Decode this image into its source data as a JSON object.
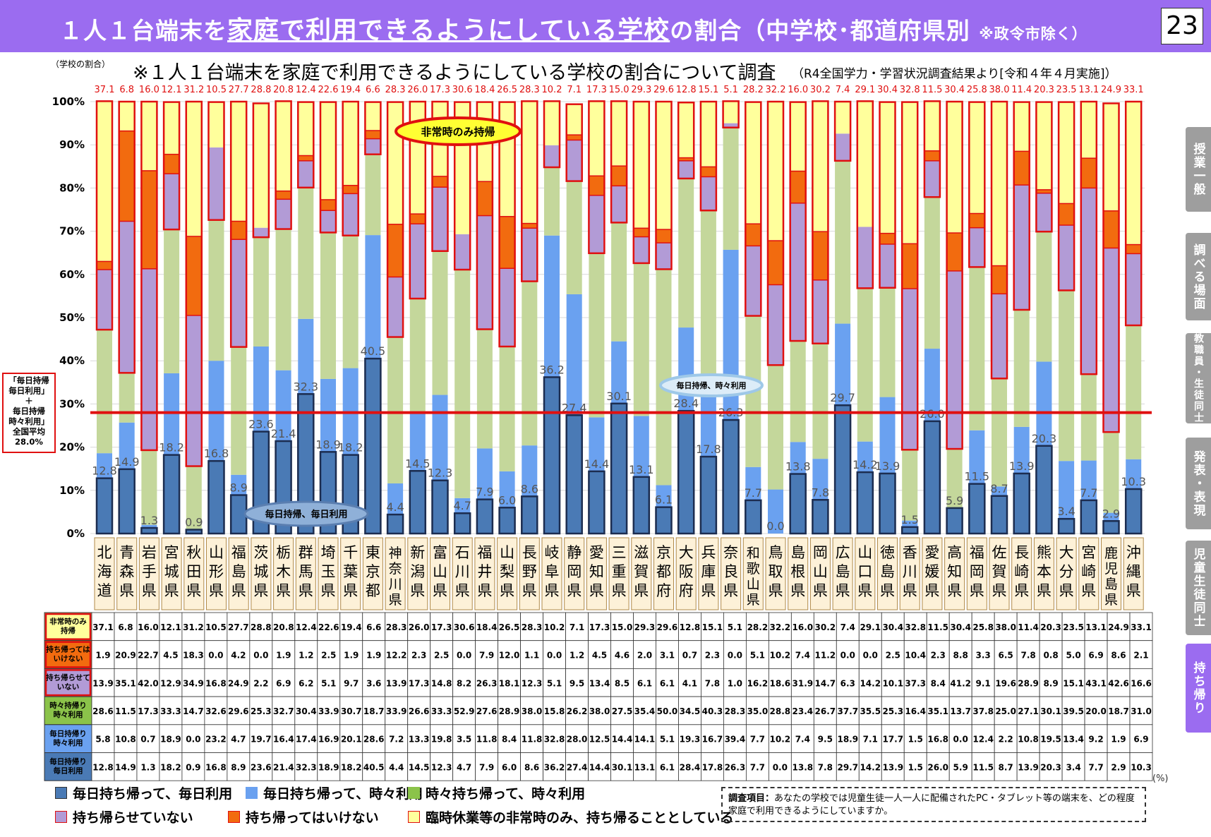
{
  "header": {
    "title_pre": "１人１台端末を",
    "title_underlined": "家庭で利用できるようにしている学校",
    "title_post": "の割合（中学校･都道府県別",
    "title_note": "※政令市除く）",
    "page_number": "23"
  },
  "side_tabs": [
    "授業一般",
    "調べる場面",
    "教職員・生徒同士",
    "発表・表現",
    "児童生徒同士",
    "持ち帰り"
  ],
  "active_tab": "持ち帰り",
  "colors": {
    "daily_daily": "#4a7ab5",
    "daily_sometimes": "#6aa1f0",
    "sometimes_sometimes": "#c4d79b",
    "not_allowed_take": "#b29bd6",
    "forbidden": "#f26b0f",
    "emergency_only": "#ffff9c",
    "avg_line": "#e01010",
    "highlight_border": "#e01010",
    "label_red": "#e01010"
  },
  "annotations": {
    "emergency": "非常時のみ持帰",
    "daily_sometimes": "毎日持帰、時々利用",
    "daily_daily": "毎日持帰、毎日利用"
  },
  "average_box": {
    "line1": "「毎日持帰",
    "line2": "毎日利用」",
    "line3": "＋",
    "line4": "毎日持帰",
    "line5": "時々利用」",
    "line6": "全国平均",
    "line7": "28.0%"
  },
  "chart_data": {
    "type": "bar",
    "stacked": true,
    "title": "※１人１台端末を家庭で利用できるようにしている学校の割合について調査",
    "subtitle": "（R4全国学力・学習状況調査結果より[令和４年４月実施]）",
    "ylabel": "（学校の割合）",
    "ylim": [
      0,
      100
    ],
    "yticks": [
      "0%",
      "10%",
      "20%",
      "30%",
      "40%",
      "50%",
      "60%",
      "70%",
      "80%",
      "90%",
      "100%"
    ],
    "unit": "(%)",
    "average_value": 28.0,
    "categories": [
      "北海道",
      "青森県",
      "岩手県",
      "宮城県",
      "秋田県",
      "山形県",
      "福島県",
      "茨城県",
      "栃木県",
      "群馬県",
      "埼玉県",
      "千葉県",
      "東京都",
      "神奈川県",
      "新潟県",
      "富山県",
      "石川県",
      "福井県",
      "山梨県",
      "長野県",
      "岐阜県",
      "静岡県",
      "愛知県",
      "三重県",
      "滋賀県",
      "京都府",
      "大阪府",
      "兵庫県",
      "奈良県",
      "和歌山県",
      "鳥取県",
      "島根県",
      "岡山県",
      "広島県",
      "山口県",
      "徳島県",
      "香川県",
      "愛媛県",
      "高知県",
      "福岡県",
      "佐賀県",
      "長崎県",
      "熊本県",
      "大分県",
      "宮崎県",
      "鹿児島県",
      "沖縄県"
    ],
    "series": [
      {
        "key": "daily_daily",
        "name": "毎日持ち帰って、毎日利用",
        "table_label": "毎日持帰り\n毎日利用",
        "values": [
          12.8,
          14.9,
          1.3,
          18.2,
          0.9,
          16.8,
          8.9,
          23.6,
          21.4,
          32.3,
          18.9,
          18.2,
          40.5,
          4.4,
          14.5,
          12.3,
          4.7,
          7.9,
          6.0,
          8.6,
          36.2,
          27.4,
          14.4,
          30.1,
          13.1,
          6.1,
          28.4,
          17.8,
          26.3,
          7.7,
          0.0,
          13.8,
          7.8,
          29.7,
          14.2,
          13.9,
          1.5,
          26.0,
          5.9,
          11.5,
          8.7,
          13.9,
          20.3,
          3.4,
          7.7,
          2.9,
          10.3
        ]
      },
      {
        "key": "daily_sometimes",
        "name": "毎日持ち帰って、時々利用",
        "table_label": "毎日持帰り\n時々利用",
        "values": [
          5.8,
          10.8,
          0.7,
          18.9,
          0.0,
          23.2,
          4.7,
          19.7,
          16.4,
          17.4,
          16.9,
          20.1,
          28.6,
          7.2,
          13.3,
          19.8,
          3.5,
          11.8,
          8.4,
          11.8,
          32.8,
          28.0,
          12.5,
          14.4,
          14.1,
          5.1,
          19.3,
          16.7,
          39.4,
          7.7,
          10.2,
          7.4,
          9.5,
          18.9,
          7.1,
          17.7,
          1.5,
          16.8,
          0.0,
          12.4,
          2.2,
          10.8,
          19.5,
          13.4,
          9.2,
          1.9,
          6.9
        ]
      },
      {
        "key": "sometimes_sometimes",
        "name": "時々持ち帰って、時々利用",
        "table_label": "時々持帰り\n時々利用",
        "values": [
          28.6,
          11.5,
          17.3,
          33.3,
          14.7,
          32.6,
          29.6,
          25.3,
          32.7,
          30.4,
          33.9,
          30.7,
          18.7,
          33.9,
          26.6,
          33.3,
          52.9,
          27.6,
          28.9,
          38.0,
          15.8,
          26.2,
          38.0,
          27.5,
          35.4,
          50.0,
          34.5,
          40.3,
          28.3,
          35.0,
          28.8,
          23.4,
          26.7,
          37.7,
          35.5,
          25.3,
          16.4,
          35.1,
          13.7,
          37.8,
          25.0,
          27.1,
          30.1,
          39.5,
          20.0,
          18.7,
          31.0
        ]
      },
      {
        "key": "not_allowed_take",
        "name": "持ち帰らせていない",
        "table_label": "持ち帰らせて\nいない",
        "values": [
          13.9,
          35.1,
          42.0,
          12.9,
          34.9,
          16.8,
          24.9,
          2.2,
          6.9,
          6.2,
          5.1,
          9.7,
          3.6,
          13.9,
          17.3,
          14.8,
          8.2,
          26.3,
          18.1,
          12.3,
          5.1,
          9.5,
          13.4,
          8.5,
          6.1,
          6.1,
          4.1,
          7.8,
          1.0,
          16.2,
          18.6,
          31.9,
          14.7,
          6.3,
          14.2,
          10.1,
          37.3,
          8.4,
          41.2,
          9.1,
          19.6,
          28.9,
          8.9,
          15.1,
          43.1,
          42.6,
          16.6
        ]
      },
      {
        "key": "forbidden",
        "name": "持ち帰ってはいけない",
        "table_label": "持ち帰っては\nいけない",
        "values": [
          1.9,
          20.9,
          22.7,
          4.5,
          18.3,
          0.0,
          4.2,
          0.0,
          1.9,
          1.2,
          2.5,
          1.9,
          1.9,
          12.2,
          2.3,
          2.5,
          0.0,
          7.9,
          12.0,
          1.1,
          0.0,
          1.2,
          4.5,
          4.6,
          2.0,
          3.1,
          0.7,
          2.3,
          0.0,
          5.1,
          10.2,
          7.4,
          11.2,
          0.0,
          0.0,
          2.5,
          10.4,
          2.3,
          8.8,
          3.3,
          6.5,
          7.8,
          0.8,
          5.0,
          6.9,
          8.6,
          2.1
        ]
      },
      {
        "key": "emergency_only",
        "name": "臨時休業等の非常時のみ、持ち帰ることとしている",
        "table_label": "非常時のみ\n持帰",
        "values": [
          37.1,
          6.8,
          16.0,
          12.1,
          31.2,
          10.5,
          27.7,
          28.8,
          20.8,
          12.4,
          22.6,
          19.4,
          6.6,
          28.3,
          26.0,
          17.3,
          30.6,
          18.4,
          26.5,
          28.3,
          10.2,
          7.1,
          17.3,
          15.0,
          29.3,
          29.6,
          12.8,
          15.1,
          5.1,
          28.2,
          32.2,
          16.0,
          30.2,
          7.4,
          29.1,
          30.4,
          32.8,
          11.5,
          30.4,
          25.8,
          38.0,
          11.4,
          20.3,
          23.5,
          13.1,
          24.9,
          33.1
        ]
      }
    ]
  },
  "legend": [
    {
      "key": "daily_daily",
      "label": "毎日持ち帰って、毎日利用"
    },
    {
      "key": "daily_sometimes",
      "label": "毎日持ち帰って、時々利用"
    },
    {
      "key": "sometimes_sometimes",
      "label": "時々持ち帰って、時々利用"
    },
    {
      "key": "not_allowed_take",
      "label": "持ち帰らせていない"
    },
    {
      "key": "forbidden",
      "label": "持ち帰ってはいけない"
    },
    {
      "key": "emergency_only",
      "label": "臨時休業等の非常時のみ、持ち帰ることとしている"
    }
  ],
  "survey_note": {
    "label": "調査項目：",
    "text": "あなたの学校では児童生徒一人一人に配備されたPC・タブレット等の端末を、どの程度家庭で利用できるようにしていますか。"
  }
}
